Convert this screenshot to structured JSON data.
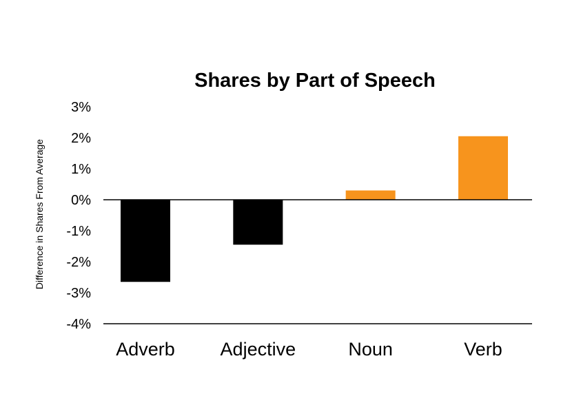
{
  "chart_data": {
    "type": "bar",
    "title": "Shares by Part of Speech",
    "xlabel": "",
    "ylabel": "Difference in Shares From Average",
    "categories": [
      "Adverb",
      "Adjective",
      "Noun",
      "Verb"
    ],
    "values": [
      -2.65,
      -1.45,
      0.3,
      2.05
    ],
    "ylim": [
      -4,
      3
    ],
    "yticks": [
      3,
      2,
      1,
      0,
      -1,
      -2,
      -3,
      -4
    ],
    "ytick_labels": [
      "3%",
      "2%",
      "1%",
      "0%",
      "-1%",
      "-2%",
      "-3%",
      "-4%"
    ],
    "grid": false,
    "legend": "none",
    "colors": {
      "negative": "#000000",
      "positive": "#f7941d"
    }
  }
}
